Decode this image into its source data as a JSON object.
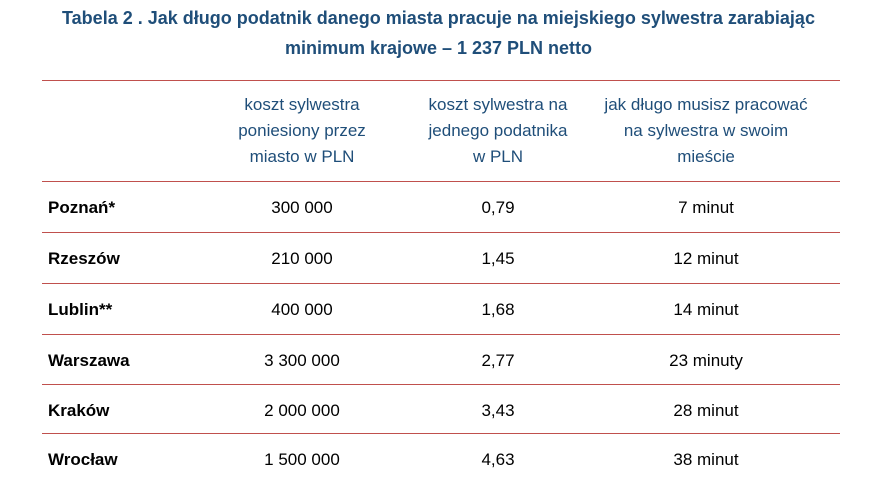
{
  "title": {
    "line1": "Tabela 2 . Jak długo podatnik danego miasta pracuje na miejskiego sylwestra zarabiając",
    "line2": "minimum krajowe – 1 237 PLN netto"
  },
  "colors": {
    "title": "#1f4e79",
    "rule": "#c0504d"
  },
  "table": {
    "headers": [
      {
        "lines": [
          "koszt sylwestra",
          "poniesiony przez",
          "miasto w PLN"
        ]
      },
      {
        "lines": [
          "koszt sylwestra na",
          "jednego podatnika",
          "w PLN"
        ]
      },
      {
        "lines": [
          "jak długo musisz pracować",
          "na sylwestra w swoim",
          "mieście"
        ]
      }
    ],
    "rows": [
      {
        "city": "Poznań*",
        "cost": "300 000",
        "per_taxpayer": "0,79",
        "time": "7 minut"
      },
      {
        "city": "Rzeszów",
        "cost": "210 000",
        "per_taxpayer": "1,45",
        "time": "12 minut"
      },
      {
        "city": "Lublin**",
        "cost": "400 000",
        "per_taxpayer": "1,68",
        "time": "14 minut"
      },
      {
        "city": "Warszawa",
        "cost": "3 300 000",
        "per_taxpayer": "2,77",
        "time": "23 minuty"
      },
      {
        "city": "Kraków",
        "cost": "2 000 000",
        "per_taxpayer": "3,43",
        "time": "28 minut"
      },
      {
        "city": "Wrocław",
        "cost": "1 500 000",
        "per_taxpayer": "4,63",
        "time": "38 minut"
      }
    ]
  }
}
